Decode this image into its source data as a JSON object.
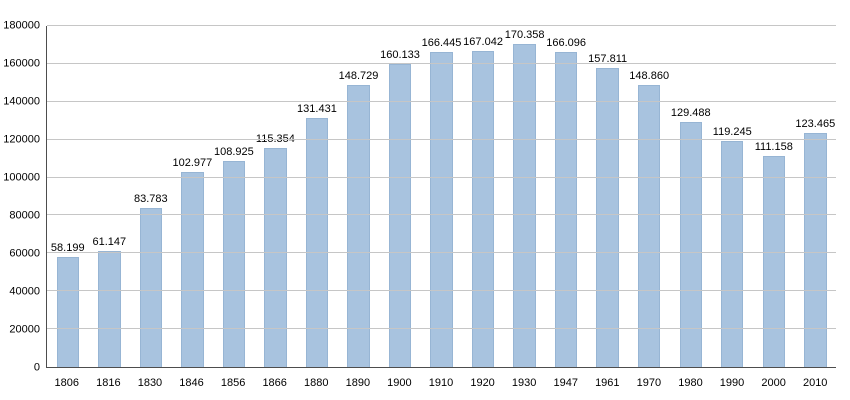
{
  "chart_data": {
    "type": "bar",
    "title": "",
    "xlabel": "",
    "ylabel": "",
    "categories": [
      "1806",
      "1816",
      "1830",
      "1846",
      "1856",
      "1866",
      "1880",
      "1890",
      "1900",
      "1910",
      "1920",
      "1930",
      "1947",
      "1961",
      "1970",
      "1980",
      "1990",
      "2000",
      "2010"
    ],
    "values": [
      58199,
      61147,
      83783,
      102977,
      108925,
      115354,
      131431,
      148729,
      160133,
      166445,
      167042,
      170358,
      166096,
      157811,
      148860,
      129488,
      119245,
      111158,
      123465
    ],
    "value_labels": [
      "58.199",
      "61.147",
      "83.783",
      "102.977",
      "108.925",
      "115.354",
      "131.431",
      "148.729",
      "160.133",
      "166.445",
      "167.042",
      "170.358",
      "166.096",
      "157.811",
      "148.860",
      "129.488",
      "119.245",
      "111.158",
      "123.465"
    ],
    "ylim": [
      0,
      180000
    ],
    "ytick_step": 20000,
    "ytick_labels": [
      "0",
      "20000",
      "40000",
      "60000",
      "80000",
      "100000",
      "120000",
      "140000",
      "160000",
      "180000"
    ],
    "grid": true,
    "legend_position": "none",
    "bar_color": "#a8c3df",
    "bar_border_color": "#97b5d4",
    "gridline_color": "#c6c6c6",
    "axis_color": "#4d4d4d",
    "background_color": "#ffffff"
  }
}
